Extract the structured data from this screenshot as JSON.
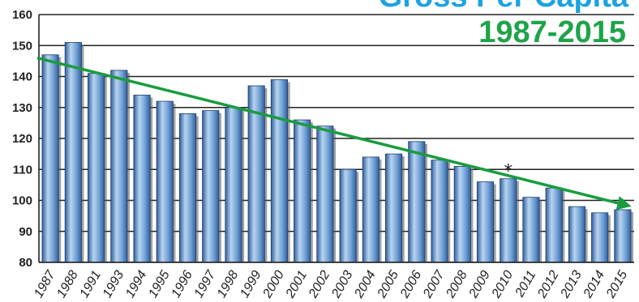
{
  "chart_data": {
    "type": "bar",
    "title": "Gross Per Capita",
    "subtitle": "1987-2015",
    "categories": [
      "1987",
      "1988",
      "1991",
      "1993",
      "1994",
      "1995",
      "1996",
      "1997",
      "1998",
      "1999",
      "2000",
      "2001",
      "2002",
      "2003",
      "2004",
      "2005",
      "2006",
      "2007",
      "2008",
      "2009",
      "2010",
      "2011",
      "2012",
      "2013",
      "2014",
      "2015"
    ],
    "series": [
      {
        "values": [
          147,
          151,
          141,
          142,
          134,
          132,
          128,
          129,
          130,
          137,
          139,
          126,
          124,
          110,
          114,
          115,
          119,
          113,
          111,
          106,
          107,
          101,
          104,
          98,
          96,
          97
        ]
      }
    ],
    "ylim": [
      80,
      160
    ],
    "yticks": [
      80,
      90,
      100,
      110,
      120,
      130,
      140,
      150,
      160
    ],
    "trendline": {
      "start": 146,
      "end": 98.5
    },
    "annotation": {
      "text": "*",
      "category": "2010"
    },
    "xlabel": "",
    "ylabel": "",
    "grid": true,
    "colors": {
      "bar_light": "#b8d4f0",
      "bar_mid": "#6f9fd4",
      "bar_dark": "#2f5f9c",
      "title1": "#1aa3e0",
      "title2": "#1fa34a",
      "trend": "#1a9c3e",
      "grid": "#222222"
    }
  }
}
